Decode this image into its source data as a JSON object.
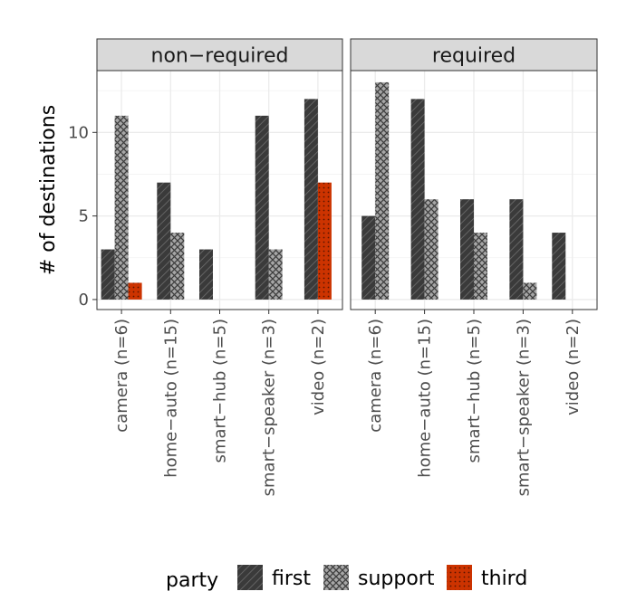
{
  "chart_data": {
    "type": "bar",
    "ylabel": "# of destinations",
    "xlabel": "",
    "ylim": [
      -0.6,
      13.7
    ],
    "yticks": [
      0,
      5,
      10
    ],
    "categories": [
      "camera (n=6)",
      "home−auto (n=15)",
      "smart−hub (n=5)",
      "smart−speaker (n=3)",
      "video (n=2)"
    ],
    "legend": {
      "title": "party",
      "position": "bottom",
      "entries": [
        "first",
        "support",
        "third"
      ]
    },
    "series_styles": {
      "first": {
        "pattern": "stripe",
        "color": "#3a3a3a"
      },
      "support": {
        "pattern": "crosshatch",
        "color": "#a6a6a6"
      },
      "third": {
        "pattern": "dots",
        "color": "#cc3300"
      }
    },
    "panels": [
      {
        "label": "non−required",
        "groups": [
          {
            "category": "camera (n=6)",
            "bars": [
              {
                "party": "first",
                "value": 3
              },
              {
                "party": "support",
                "value": 11
              },
              {
                "party": "third",
                "value": 1
              }
            ]
          },
          {
            "category": "home−auto (n=15)",
            "bars": [
              {
                "party": "first",
                "value": 7
              },
              {
                "party": "support",
                "value": 4
              }
            ]
          },
          {
            "category": "smart−hub (n=5)",
            "bars": [
              {
                "party": "first",
                "value": 3
              }
            ]
          },
          {
            "category": "smart−speaker (n=3)",
            "bars": [
              {
                "party": "first",
                "value": 11
              },
              {
                "party": "support",
                "value": 3
              }
            ]
          },
          {
            "category": "video (n=2)",
            "bars": [
              {
                "party": "first",
                "value": 12
              },
              {
                "party": "third",
                "value": 7
              }
            ]
          }
        ]
      },
      {
        "label": "required",
        "groups": [
          {
            "category": "camera (n=6)",
            "bars": [
              {
                "party": "first",
                "value": 5
              },
              {
                "party": "support",
                "value": 13
              }
            ]
          },
          {
            "category": "home−auto (n=15)",
            "bars": [
              {
                "party": "first",
                "value": 12
              },
              {
                "party": "support",
                "value": 6
              }
            ]
          },
          {
            "category": "smart−hub (n=5)",
            "bars": [
              {
                "party": "first",
                "value": 6
              },
              {
                "party": "support",
                "value": 4
              }
            ]
          },
          {
            "category": "smart−speaker (n=3)",
            "bars": [
              {
                "party": "first",
                "value": 6
              },
              {
                "party": "support",
                "value": 1
              }
            ]
          },
          {
            "category": "video (n=2)",
            "bars": [
              {
                "party": "first",
                "value": 4
              }
            ]
          }
        ]
      }
    ]
  }
}
